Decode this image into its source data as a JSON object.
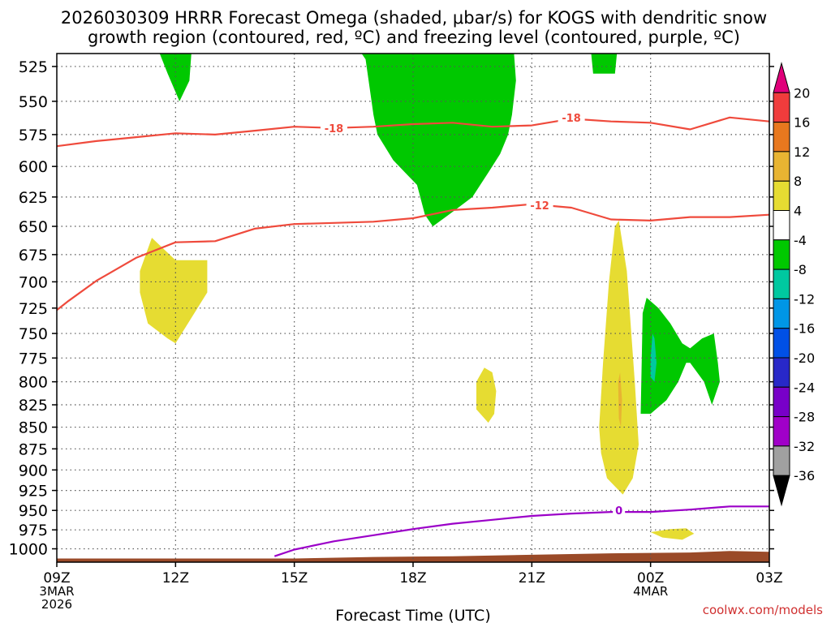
{
  "title_line1": "2026030309 HRRR Forecast Omega (shaded, μbar/s) for KOGS with dendritic snow",
  "title_line2": "growth region (contoured, red, ºC) and freezing level (contoured, purple, ºC)",
  "xlabel": "Forecast Time (UTC)",
  "credit": "coolwx.com/models",
  "chart_data": {
    "type": "time-height contour",
    "x_ticks": [
      "09Z",
      "12Z",
      "15Z",
      "18Z",
      "21Z",
      "00Z",
      "03Z"
    ],
    "x_hours": [
      0,
      3,
      6,
      9,
      12,
      15,
      18
    ],
    "x_sub_labels": [
      {
        "hour": 0,
        "lines": [
          "3MAR",
          "2026"
        ]
      },
      {
        "hour": 15,
        "lines": [
          "4MAR"
        ]
      }
    ],
    "y_ticks": [
      525,
      550,
      575,
      600,
      625,
      650,
      675,
      700,
      725,
      750,
      775,
      800,
      825,
      850,
      875,
      900,
      925,
      950,
      975,
      1000
    ],
    "y_range_hpa": [
      516,
      1018
    ],
    "grid": true,
    "colorbar": {
      "labels": [
        "20",
        "16",
        "12",
        "8",
        "4",
        "-4",
        "-8",
        "-12",
        "-16",
        "-20",
        "-24",
        "-28",
        "-32",
        "-36"
      ],
      "colors": [
        "#e0007a",
        "#f03c3c",
        "#e8781e",
        "#e8b432",
        "#e6dc32",
        "#ffffff",
        "#00c800",
        "#00c8a0",
        "#0096e6",
        "#0050e6",
        "#2828c8",
        "#7800c8",
        "#a000c8",
        "#a0a0a0",
        "#000000"
      ]
    },
    "contours": [
      {
        "value": "-18",
        "color": "#ef4a3c",
        "points": [
          [
            0,
            584
          ],
          [
            1,
            580
          ],
          [
            2,
            577
          ],
          [
            3,
            574
          ],
          [
            4,
            575
          ],
          [
            5,
            572
          ],
          [
            6,
            569
          ],
          [
            7,
            570
          ],
          [
            8,
            569
          ],
          [
            9,
            567
          ],
          [
            10,
            566
          ],
          [
            11,
            569
          ],
          [
            12,
            568
          ],
          [
            13,
            563
          ],
          [
            14,
            565
          ],
          [
            15,
            566
          ],
          [
            16,
            571
          ],
          [
            17,
            562
          ],
          [
            18,
            565
          ]
        ]
      },
      {
        "value": "-12",
        "color": "#ef4a3c",
        "points": [
          [
            0,
            727
          ],
          [
            0.3,
            718
          ],
          [
            1,
            699
          ],
          [
            2,
            678
          ],
          [
            3,
            664
          ],
          [
            4,
            663
          ],
          [
            5,
            652
          ],
          [
            6,
            648
          ],
          [
            7,
            647
          ],
          [
            8,
            646
          ],
          [
            9,
            643
          ],
          [
            10,
            636
          ],
          [
            11,
            634
          ],
          [
            12,
            631
          ],
          [
            13,
            634
          ],
          [
            14,
            644
          ],
          [
            15,
            645
          ],
          [
            16,
            642
          ],
          [
            17,
            642
          ],
          [
            18,
            640
          ]
        ]
      },
      {
        "value": "0",
        "color": "#9b00c8",
        "points": [
          [
            5.5,
            1010
          ],
          [
            6,
            1001
          ],
          [
            7,
            990
          ],
          [
            8,
            982
          ],
          [
            9,
            974
          ],
          [
            10,
            967
          ],
          [
            11,
            962
          ],
          [
            12,
            957
          ],
          [
            13,
            954
          ],
          [
            14,
            952
          ],
          [
            15,
            952
          ],
          [
            16,
            949
          ],
          [
            17,
            945
          ],
          [
            18,
            945
          ]
        ]
      }
    ],
    "contour_labels": [
      {
        "text": "-18",
        "hour": 7,
        "hpa": 570,
        "color": "#ef4a3c"
      },
      {
        "text": "-18",
        "hour": 13,
        "hpa": 562,
        "color": "#ef4a3c"
      },
      {
        "text": "-12",
        "hour": 12.2,
        "hpa": 632,
        "color": "#ef4a3c"
      },
      {
        "text": "0",
        "hour": 14.2,
        "hpa": 950,
        "color": "#9b00c8"
      }
    ],
    "shaded_regions": [
      {
        "band": "4 to 8",
        "color": "#e6dc32",
        "points": [
          [
            2.1,
            690
          ],
          [
            2.4,
            660
          ],
          [
            3,
            680
          ],
          [
            3.8,
            680
          ],
          [
            3.8,
            710
          ],
          [
            3,
            760
          ],
          [
            2.8,
            755
          ],
          [
            2.3,
            740
          ],
          [
            2.1,
            710
          ]
        ]
      },
      {
        "band": "4 to 8",
        "color": "#e6dc32",
        "points": [
          [
            10.6,
            800
          ],
          [
            10.8,
            785
          ],
          [
            11,
            790
          ],
          [
            11.1,
            810
          ],
          [
            11.05,
            835
          ],
          [
            10.9,
            845
          ],
          [
            10.6,
            830
          ]
        ]
      },
      {
        "band": "4 to 8",
        "color": "#e6dc32",
        "points": [
          [
            13.7,
            850
          ],
          [
            13.8,
            780
          ],
          [
            13.95,
            700
          ],
          [
            14.1,
            650
          ],
          [
            14.2,
            645
          ],
          [
            14.4,
            690
          ],
          [
            14.6,
            800
          ],
          [
            14.7,
            870
          ],
          [
            14.55,
            910
          ],
          [
            14.3,
            930
          ],
          [
            13.9,
            910
          ],
          [
            13.75,
            880
          ]
        ]
      },
      {
        "band": "8 to 12",
        "color": "#e8b432",
        "points": [
          [
            14.18,
            800
          ],
          [
            14.23,
            790
          ],
          [
            14.28,
            820
          ],
          [
            14.25,
            850
          ],
          [
            14.2,
            840
          ]
        ]
      },
      {
        "band": "4 to 8",
        "color": "#e6dc32",
        "points": [
          [
            15,
            978
          ],
          [
            15.5,
            974
          ],
          [
            15.9,
            973
          ],
          [
            16.1,
            980
          ],
          [
            15.8,
            988
          ],
          [
            15.3,
            985
          ]
        ]
      },
      {
        "band": "-4 to -8",
        "color": "#00c800",
        "points": [
          [
            2.6,
            516
          ],
          [
            3.4,
            516
          ],
          [
            3.35,
            535
          ],
          [
            3.1,
            550
          ],
          [
            2.8,
            530
          ]
        ]
      },
      {
        "band": "-4 to -8",
        "color": "#00c800",
        "points": [
          [
            8.65,
            516
          ],
          [
            11.55,
            516
          ],
          [
            11.6,
            535
          ],
          [
            11.5,
            560
          ],
          [
            11.4,
            575
          ],
          [
            11.2,
            590
          ],
          [
            10.9,
            605
          ],
          [
            10.5,
            625
          ],
          [
            10.1,
            635
          ],
          [
            9.9,
            640
          ],
          [
            9.5,
            650
          ],
          [
            9.3,
            640
          ],
          [
            9.1,
            615
          ],
          [
            8.8,
            605
          ],
          [
            8.5,
            595
          ],
          [
            8.1,
            575
          ],
          [
            8.0,
            560
          ],
          [
            7.8,
            520
          ],
          [
            7.7,
            516
          ]
        ]
      },
      {
        "band": "-4 to -8",
        "color": "#00c800",
        "points": [
          [
            13.5,
            516
          ],
          [
            14.15,
            516
          ],
          [
            14.1,
            530
          ],
          [
            13.55,
            530
          ]
        ]
      },
      {
        "band": "-4 to -8",
        "color": "#00c800",
        "points": [
          [
            14.75,
            835
          ],
          [
            14.8,
            730
          ],
          [
            14.9,
            715
          ],
          [
            15.2,
            725
          ],
          [
            15.5,
            740
          ],
          [
            15.8,
            760
          ],
          [
            16.0,
            765
          ],
          [
            16.3,
            755
          ],
          [
            16.6,
            750
          ],
          [
            16.7,
            780
          ],
          [
            16.75,
            800
          ],
          [
            16.55,
            825
          ],
          [
            16.35,
            800
          ],
          [
            16.0,
            780
          ],
          [
            15.9,
            780
          ],
          [
            15.7,
            800
          ],
          [
            15.4,
            820
          ],
          [
            15.0,
            835
          ]
        ]
      },
      {
        "band": "-8 to -12",
        "color": "#00c8a0",
        "points": [
          [
            15.0,
            775
          ],
          [
            15.05,
            750
          ],
          [
            15.1,
            755
          ],
          [
            15.15,
            780
          ],
          [
            15.1,
            800
          ],
          [
            15.0,
            795
          ]
        ]
      }
    ],
    "terrain_color": "#9a4a28",
    "terrain_points": [
      [
        0,
        1013
      ],
      [
        6,
        1013
      ],
      [
        8,
        1011
      ],
      [
        10,
        1010
      ],
      [
        12,
        1008
      ],
      [
        14,
        1006
      ],
      [
        16,
        1005
      ],
      [
        17,
        1003
      ],
      [
        18,
        1004
      ]
    ]
  }
}
